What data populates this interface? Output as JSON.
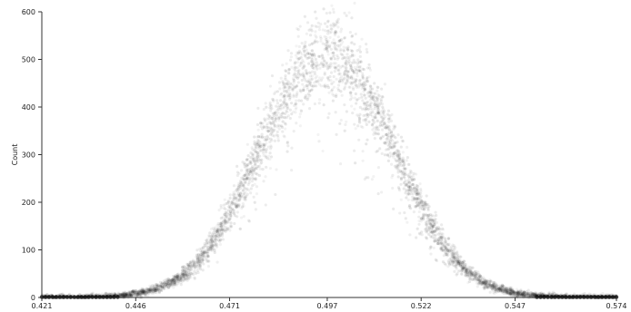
{
  "chart_data": {
    "type": "scatter",
    "title": "",
    "xlabel": "",
    "ylabel": "Count",
    "xlim": [
      0.421,
      0.574
    ],
    "ylim": [
      0,
      600
    ],
    "x_ticks": [
      0.421,
      0.446,
      0.471,
      0.497,
      0.522,
      0.547,
      0.574
    ],
    "x_tick_labels": [
      "0.421",
      "0.446",
      "0.471",
      "0.497",
      "0.522",
      "0.547",
      "0.574"
    ],
    "y_ticks": [
      0,
      100,
      200,
      300,
      400,
      500,
      600
    ],
    "y_tick_labels": [
      "0",
      "100",
      "200",
      "300",
      "400",
      "500",
      "600"
    ],
    "grid": false,
    "legend": "none",
    "point_color": "#000000",
    "distribution": {
      "shape": "gaussian",
      "center_x": 0.497,
      "peak_y": 510,
      "x_min": 0.421,
      "x_max": 0.574
    }
  }
}
